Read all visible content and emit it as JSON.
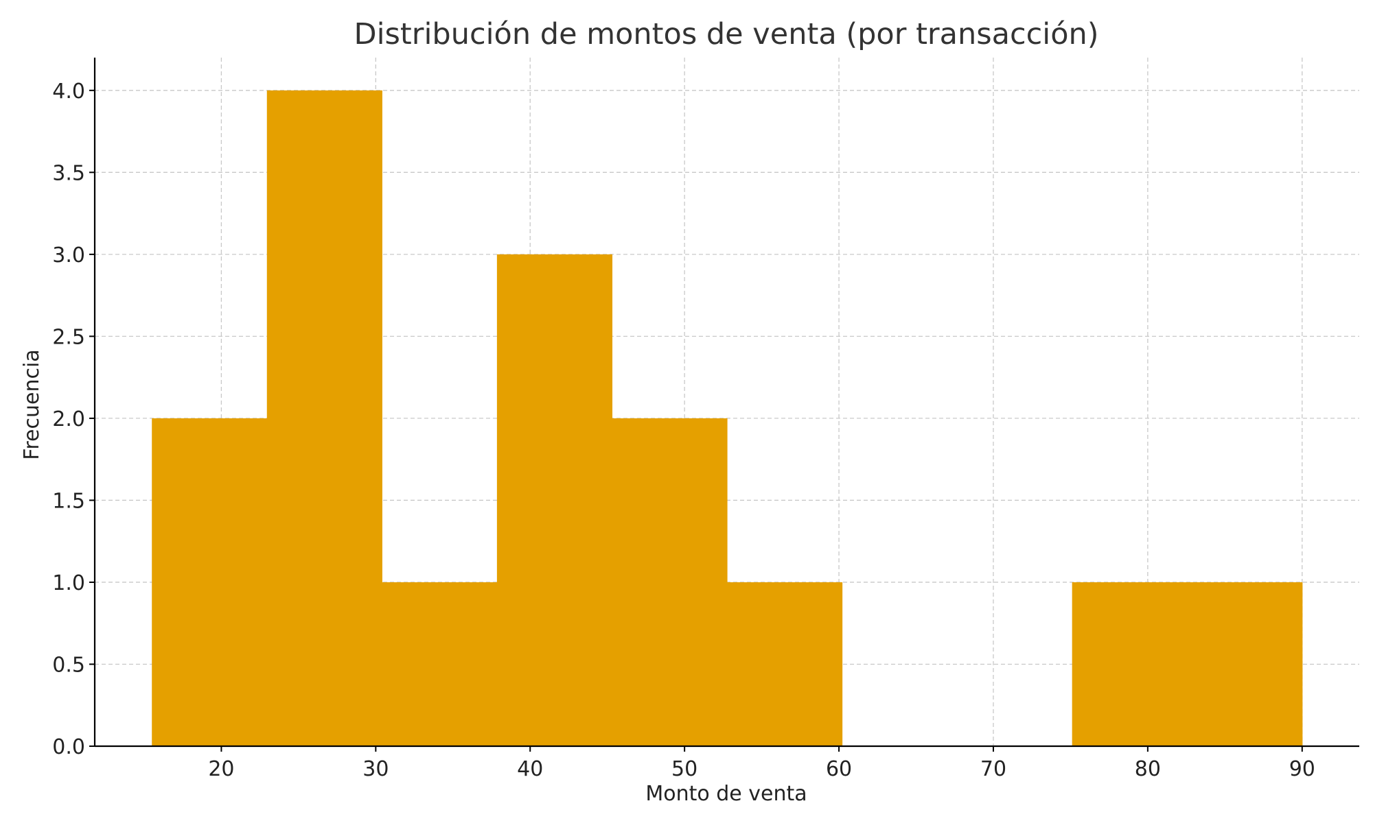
{
  "chart_data": {
    "type": "bar",
    "histogram": true,
    "title": "Distribución de montos de venta (por transacción)",
    "xlabel": "Monto de venta",
    "ylabel": "Frecuencia",
    "bin_edges": [
      15.5,
      22.95,
      30.4,
      37.85,
      45.3,
      52.75,
      60.2,
      67.65,
      75.1,
      82.55,
      90.0
    ],
    "values": [
      2,
      4,
      1,
      3,
      2,
      1,
      0,
      0,
      1,
      1
    ],
    "xlim": [
      11.8,
      93.7
    ],
    "ylim": [
      0,
      4.2
    ],
    "x_ticks": [
      20,
      30,
      40,
      50,
      60,
      70,
      80,
      90
    ],
    "y_ticks": [
      0.0,
      0.5,
      1.0,
      1.5,
      2.0,
      2.5,
      3.0,
      3.5,
      4.0
    ],
    "y_tick_labels": [
      "0.0",
      "0.5",
      "1.0",
      "1.5",
      "2.0",
      "2.5",
      "3.0",
      "3.5",
      "4.0"
    ],
    "grid": true,
    "bar_color": "#e5a000",
    "legend": "none"
  }
}
